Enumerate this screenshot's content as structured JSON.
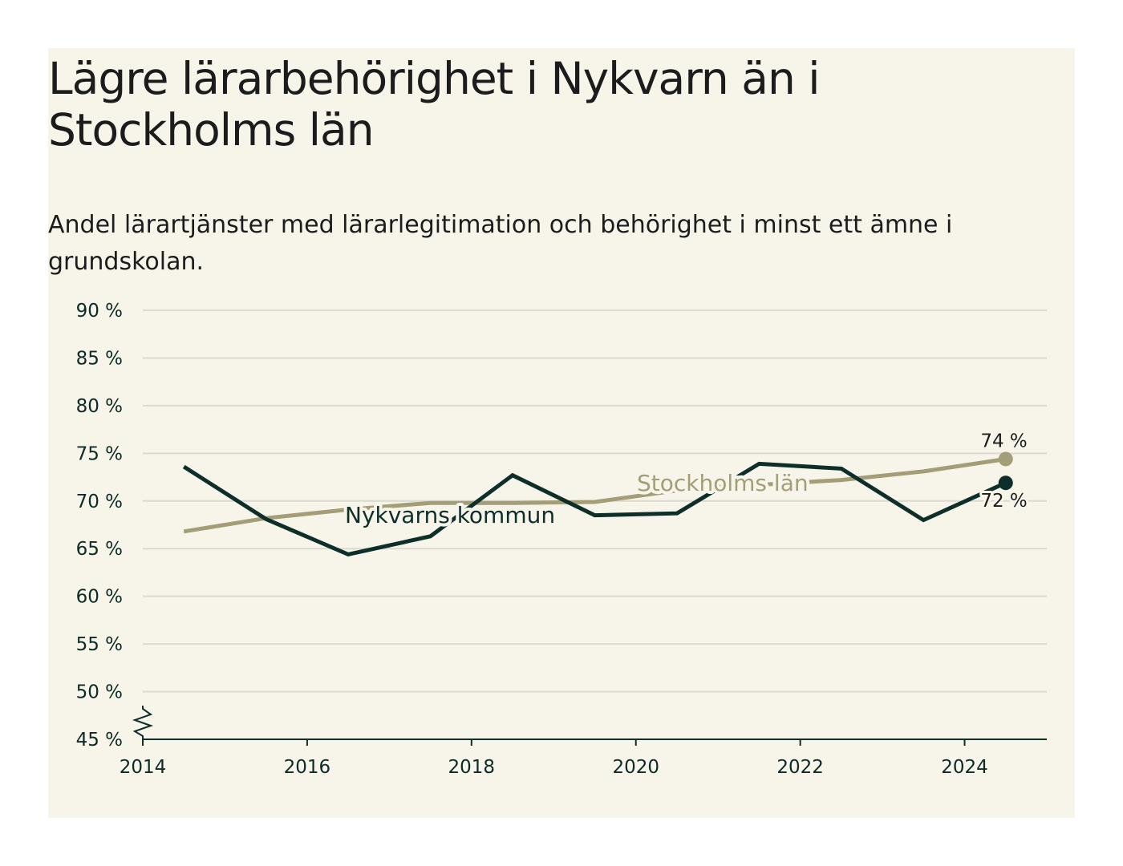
{
  "title": "Lägre lärarbehörighet i Nykvarn än i Stockholms län",
  "subtitle": "Andel lärartjänster med lärarlegitimation och behörighet i minst ett ämne i grundskolan.",
  "colors": {
    "background": "#f7f5ea",
    "nykvarn": "#0e2e2a",
    "stockholm": "#a39e78",
    "grid": "#dcdad0",
    "axis": "#0e2e2a"
  },
  "chart_data": {
    "type": "line",
    "y_unit": "%",
    "ylim": [
      45,
      90
    ],
    "xlim": [
      2014,
      2025
    ],
    "y_ticks": [
      45,
      50,
      55,
      60,
      65,
      70,
      75,
      80,
      85,
      90
    ],
    "y_tick_labels": [
      "45 %",
      "50 %",
      "55 %",
      "60 %",
      "65 %",
      "70 %",
      "75 %",
      "80 %",
      "85 %",
      "90 %"
    ],
    "x_ticks": [
      2014,
      2016,
      2018,
      2020,
      2022,
      2024
    ],
    "x_tick_labels": [
      "2014",
      "2016",
      "2018",
      "2020",
      "2022",
      "2024"
    ],
    "grid": true,
    "axis_break": true,
    "series": [
      {
        "name": "Stockholms län",
        "color": "#a39e78",
        "x": [
          2014.5,
          2015.5,
          2016.5,
          2017.5,
          2018.5,
          2019.5,
          2020.5,
          2021.5,
          2022.5,
          2023.5,
          2024.5
        ],
        "values": [
          66.8,
          68.2,
          69.1,
          69.8,
          69.8,
          69.9,
          71.1,
          71.7,
          72.2,
          73.1,
          74.4
        ],
        "end_label": "74 %"
      },
      {
        "name": "Nykvarns kommun",
        "color": "#0e2e2a",
        "x": [
          2014.5,
          2015.5,
          2016.5,
          2017.5,
          2018.5,
          2019.5,
          2020.5,
          2021.5,
          2022.5,
          2023.5,
          2024.5
        ],
        "values": [
          73.6,
          68.1,
          64.4,
          66.3,
          72.7,
          68.5,
          68.7,
          73.9,
          73.4,
          68.0,
          71.9
        ],
        "end_label": "72 %"
      }
    ]
  }
}
